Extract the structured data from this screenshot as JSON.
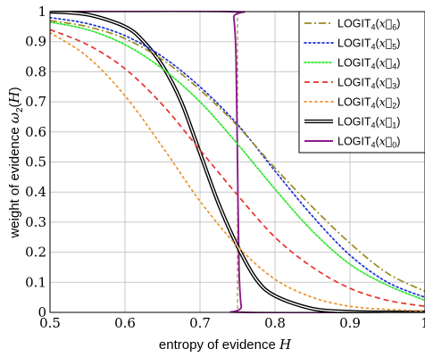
{
  "chart_data": {
    "type": "line",
    "xlabel": "entropy of evidence",
    "xlabel_var": "H",
    "ylabel": "weight of evidence",
    "ylabel_sym": "ω",
    "ylabel_sub": "2",
    "ylabel_arg": "H",
    "xlim": [
      0.5,
      1.0
    ],
    "ylim": [
      0,
      1
    ],
    "x_ticks": [
      "0.5",
      "0.6",
      "0.7",
      "0.8",
      "0.9",
      "1"
    ],
    "y_ticks": [
      "0",
      "0.1",
      "0.2",
      "0.3",
      "0.4",
      "0.5",
      "0.6",
      "0.7",
      "0.8",
      "0.9",
      "1"
    ],
    "grid": true,
    "legend_position": "top-right",
    "vertical_marker_x": 0.75,
    "series": [
      {
        "name": "LOGIT4(x⃗6)",
        "label_main": "LOGIT",
        "label_sub": "4",
        "label_arg": "x⃗",
        "label_argsub": "6",
        "color": "#9b8a1e",
        "dash": "8 3 2 3",
        "style": "dashdot",
        "x": [
          0.5,
          0.55,
          0.6,
          0.65,
          0.7,
          0.75,
          0.8,
          0.85,
          0.9,
          0.95,
          1.0
        ],
        "y": [
          0.97,
          0.95,
          0.91,
          0.84,
          0.74,
          0.62,
          0.48,
          0.35,
          0.23,
          0.13,
          0.07
        ]
      },
      {
        "name": "LOGIT4(x⃗5)",
        "label_main": "LOGIT",
        "label_sub": "4",
        "label_arg": "x⃗",
        "label_argsub": "5",
        "color": "#1f2fd6",
        "dash": "2 3",
        "style": "dotted",
        "x": [
          0.5,
          0.55,
          0.6,
          0.65,
          0.7,
          0.75,
          0.8,
          0.85,
          0.9,
          0.95,
          1.0
        ],
        "y": [
          0.98,
          0.96,
          0.92,
          0.85,
          0.75,
          0.625,
          0.47,
          0.32,
          0.19,
          0.1,
          0.05
        ]
      },
      {
        "name": "LOGIT4(x⃗4)",
        "label_main": "LOGIT",
        "label_sub": "4",
        "label_arg": "x⃗",
        "label_argsub": "4",
        "color": "#2ee62e",
        "dash": "2 2",
        "style": "dotted",
        "x": [
          0.5,
          0.55,
          0.6,
          0.65,
          0.7,
          0.75,
          0.8,
          0.85,
          0.9,
          0.95,
          1.0
        ],
        "y": [
          0.965,
          0.94,
          0.89,
          0.81,
          0.7,
          0.56,
          0.41,
          0.27,
          0.16,
          0.09,
          0.04
        ]
      },
      {
        "name": "LOGIT4(x⃗3)",
        "label_main": "LOGIT",
        "label_sub": "4",
        "label_arg": "x⃗",
        "label_argsub": "3",
        "color": "#e8312a",
        "dash": "6 4",
        "style": "dashed",
        "x": [
          0.5,
          0.55,
          0.6,
          0.65,
          0.7,
          0.75,
          0.8,
          0.85,
          0.9,
          0.95,
          1.0
        ],
        "y": [
          0.94,
          0.89,
          0.81,
          0.69,
          0.54,
          0.39,
          0.25,
          0.15,
          0.08,
          0.04,
          0.02
        ]
      },
      {
        "name": "LOGIT4(x⃗2)",
        "label_main": "LOGIT",
        "label_sub": "4",
        "label_arg": "x⃗",
        "label_argsub": "2",
        "color": "#f0902a",
        "dash": "2 4",
        "style": "dotted",
        "x": [
          0.5,
          0.55,
          0.6,
          0.65,
          0.7,
          0.75,
          0.8,
          0.85,
          0.9,
          0.95,
          1.0
        ],
        "y": [
          0.93,
          0.85,
          0.72,
          0.55,
          0.37,
          0.22,
          0.11,
          0.05,
          0.02,
          0.01,
          0.005
        ]
      },
      {
        "name": "LOGIT4(x⃗1)",
        "label_main": "LOGIT",
        "label_sub": "4",
        "label_arg": "x⃗",
        "label_argsub": "1",
        "color": "#000000",
        "dash": "",
        "style": "double",
        "x": [
          0.5,
          0.55,
          0.6,
          0.625,
          0.65,
          0.675,
          0.7,
          0.725,
          0.75,
          0.775,
          0.8,
          0.85,
          0.9,
          0.95,
          1.0
        ],
        "y": [
          1.0,
          0.99,
          0.95,
          0.9,
          0.82,
          0.7,
          0.53,
          0.36,
          0.22,
          0.11,
          0.055,
          0.012,
          0.002,
          0.0,
          0.0
        ]
      },
      {
        "name": "LOGIT4(x⃗0)",
        "label_main": "LOGIT",
        "label_sub": "4",
        "label_arg": "x⃗",
        "label_argsub": "0",
        "color": "#8b1a8b",
        "dash": "",
        "style": "solid",
        "x": [
          0.5,
          0.74,
          0.745,
          0.748,
          0.75,
          0.752,
          0.755,
          0.76,
          1.0
        ],
        "y": [
          1.0,
          1.0,
          0.98,
          0.85,
          0.5,
          0.15,
          0.02,
          0.0,
          0.0
        ]
      }
    ]
  }
}
